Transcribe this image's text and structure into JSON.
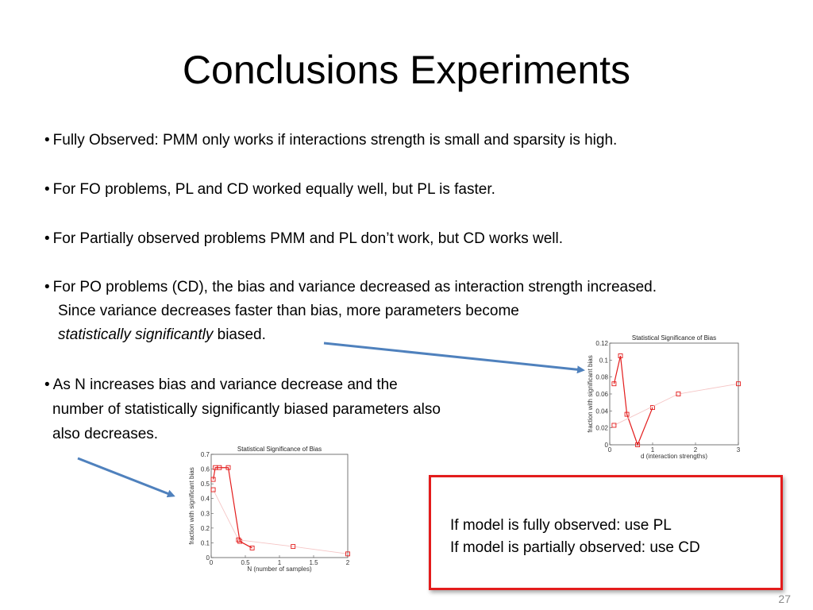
{
  "slide": {
    "title": "Conclusions Experiments",
    "page_number": "27",
    "bullet_char": "•",
    "bullets": [
      {
        "lines": [
          "Fully Observed: PMM only works if interactions strength is small and sparsity is high."
        ]
      },
      {
        "lines": [
          "For FO problems, PL and CD worked equally well, but PL is faster."
        ]
      },
      {
        "lines": [
          "For Partially observed problems PMM and PL don’t work, but CD works well."
        ]
      },
      {
        "lines": [
          "For PO problems (CD), the bias and variance decreased as interaction strength increased.",
          "Since variance decreases faster than bias, more parameters become"
        ],
        "italic": "statistically significantly",
        "tail": " biased."
      },
      {
        "lines": [
          "As N increases bias and variance decrease and the",
          "number of statistically significantly biased parameters also",
          "also decreases."
        ]
      }
    ],
    "callout": {
      "line1": "If model is fully observed: use PL",
      "line2": "If model is partially observed: use CD",
      "border_color": "#e31c1c"
    },
    "arrow_color": "#4f81bd"
  },
  "chart_data": [
    {
      "type": "line",
      "title": "Statistical Significance of Bias",
      "xlabel": "d (interaction strengths)",
      "ylabel": "fraction with significant bias",
      "xlim": [
        0,
        3
      ],
      "ylim": [
        0,
        0.12
      ],
      "x_ticks": [
        "0",
        "1",
        "2",
        "3"
      ],
      "y_ticks": [
        "0",
        "0.02",
        "0.04",
        "0.06",
        "0.08",
        "0.1",
        "0.12"
      ],
      "series": [
        {
          "color": "#e31c1c",
          "marker": "square",
          "x": [
            0.1,
            0.25,
            0.4,
            0.65,
            1.0
          ],
          "y": [
            0.072,
            0.105,
            0.036,
            0.0,
            0.044
          ]
        },
        {
          "color": "#f5c6c6",
          "marker": "square",
          "x": [
            0.1,
            1.6,
            3.0
          ],
          "y": [
            0.023,
            0.06,
            0.072
          ]
        }
      ]
    },
    {
      "type": "line",
      "title": "Statistical Significance of Bias",
      "xlabel": "N (number of samples)",
      "ylabel": "fraction with significant bias",
      "xlim": [
        0,
        2
      ],
      "ylim": [
        0,
        0.7
      ],
      "x_ticks": [
        "0",
        "0.5",
        "1",
        "1.5",
        "2"
      ],
      "y_ticks": [
        "0",
        "0.1",
        "0.2",
        "0.3",
        "0.4",
        "0.5",
        "0.6",
        "0.7"
      ],
      "series": [
        {
          "color": "#e31c1c",
          "marker": "square",
          "x": [
            0.03,
            0.06,
            0.12,
            0.25,
            0.42,
            0.6
          ],
          "y": [
            0.53,
            0.61,
            0.61,
            0.61,
            0.11,
            0.065
          ]
        },
        {
          "color": "#f5c6c6",
          "marker": "square",
          "x": [
            0.03,
            0.4,
            1.2,
            2.0
          ],
          "y": [
            0.46,
            0.12,
            0.075,
            0.025
          ]
        }
      ]
    }
  ]
}
